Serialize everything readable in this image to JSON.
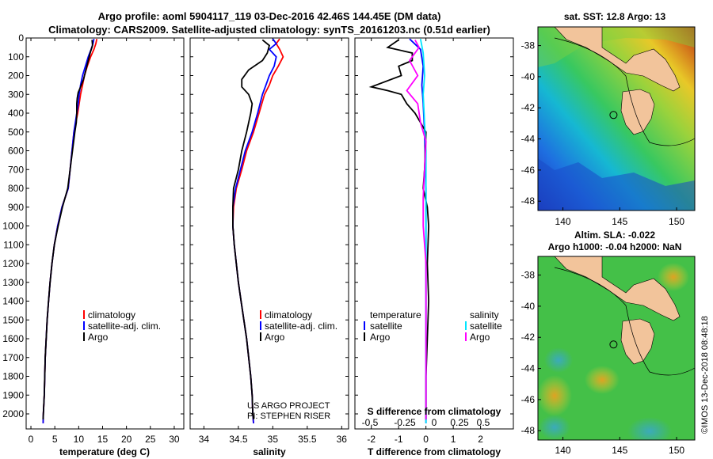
{
  "header": {
    "title_line1": "Argo profile: aoml 5904117_119 03-Dec-2016 42.46S 144.45E (DM data)",
    "title_line2": "Climatology: CARS2009. Satellite-adjusted climatology: synTS_20161203.nc (0.51d earlier)"
  },
  "colors": {
    "argo": "#000000",
    "climatology": "#ff0000",
    "satellite": "#0000ff",
    "salinity_diff": "#00e5ff",
    "salinity_sat_diff": "#ff00ff",
    "land": "#f2c49b"
  },
  "credits": {
    "line1": "US ARGO PROJECT",
    "line2": "PI: STEPHEN RISER",
    "watermark": "©IMOS 13-Dec-2018 08:48:18"
  },
  "chart_data": [
    {
      "type": "line",
      "id": "temperature",
      "xlabel": "temperature (deg C)",
      "xlim": [
        -1,
        32
      ],
      "xticks": [
        "0",
        "5",
        "10",
        "15",
        "20",
        "25",
        "30"
      ],
      "ylim": [
        0,
        2080
      ],
      "yticks": [
        "0",
        "100",
        "200",
        "300",
        "400",
        "500",
        "600",
        "700",
        "800",
        "900",
        "1000",
        "1100",
        "1200",
        "1300",
        "1400",
        "1500",
        "1600",
        "1700",
        "1800",
        "1900",
        "2000"
      ],
      "legend": [
        "climatology",
        "satellite-adj. clim.",
        "Argo"
      ],
      "series": [
        {
          "name": "climatology",
          "color": "#ff0000",
          "points": [
            [
              13.8,
              5
            ],
            [
              13.6,
              30
            ],
            [
              13.2,
              60
            ],
            [
              12.5,
              100
            ],
            [
              11.8,
              150
            ],
            [
              11.2,
              200
            ],
            [
              10.8,
              250
            ],
            [
              10.4,
              300
            ],
            [
              10.1,
              350
            ],
            [
              9.8,
              400
            ],
            [
              9.4,
              450
            ],
            [
              9.0,
              500
            ],
            [
              8.6,
              600
            ],
            [
              8.2,
              700
            ],
            [
              7.8,
              800
            ],
            [
              6.5,
              900
            ],
            [
              5.6,
              1000
            ],
            [
              4.9,
              1100
            ],
            [
              4.4,
              1200
            ],
            [
              4.0,
              1300
            ],
            [
              3.7,
              1400
            ],
            [
              3.4,
              1500
            ],
            [
              3.2,
              1600
            ],
            [
              3.0,
              1700
            ],
            [
              2.9,
              1800
            ],
            [
              2.8,
              1900
            ],
            [
              2.6,
              2000
            ],
            [
              2.55,
              2050
            ]
          ]
        },
        {
          "name": "satellite-adj. clim.",
          "color": "#0000ff",
          "points": [
            [
              13.2,
              5
            ],
            [
              13.0,
              30
            ],
            [
              12.6,
              60
            ],
            [
              12.0,
              100
            ],
            [
              11.4,
              150
            ],
            [
              10.8,
              200
            ],
            [
              10.4,
              250
            ],
            [
              10.1,
              300
            ],
            [
              9.9,
              350
            ],
            [
              9.6,
              400
            ],
            [
              9.3,
              450
            ],
            [
              9.0,
              500
            ],
            [
              8.6,
              600
            ],
            [
              8.2,
              700
            ],
            [
              7.8,
              800
            ],
            [
              6.5,
              900
            ],
            [
              5.6,
              1000
            ],
            [
              4.9,
              1100
            ],
            [
              4.4,
              1200
            ],
            [
              4.0,
              1300
            ],
            [
              3.7,
              1400
            ],
            [
              3.4,
              1500
            ],
            [
              3.2,
              1600
            ],
            [
              3.0,
              1700
            ],
            [
              2.9,
              1800
            ],
            [
              2.8,
              1900
            ],
            [
              2.6,
              2000
            ],
            [
              2.55,
              2050
            ]
          ]
        },
        {
          "name": "Argo",
          "color": "#000000",
          "points": [
            [
              12.8,
              10
            ],
            [
              12.9,
              40
            ],
            [
              12.4,
              80
            ],
            [
              12.0,
              120
            ],
            [
              11.5,
              170
            ],
            [
              11.0,
              220
            ],
            [
              10.4,
              260
            ],
            [
              9.9,
              290
            ],
            [
              9.7,
              320
            ],
            [
              9.6,
              350
            ],
            [
              9.6,
              400
            ],
            [
              9.5,
              450
            ],
            [
              9.2,
              500
            ],
            [
              8.7,
              600
            ],
            [
              8.2,
              700
            ],
            [
              7.7,
              800
            ],
            [
              6.6,
              900
            ],
            [
              5.7,
              1000
            ],
            [
              4.9,
              1100
            ],
            [
              4.4,
              1200
            ],
            [
              4.0,
              1300
            ],
            [
              3.7,
              1400
            ],
            [
              3.4,
              1500
            ],
            [
              3.2,
              1600
            ],
            [
              3.0,
              1700
            ],
            [
              2.9,
              1800
            ],
            [
              2.8,
              1900
            ],
            [
              2.6,
              2000
            ],
            [
              2.55,
              2030
            ]
          ]
        }
      ]
    },
    {
      "type": "line",
      "id": "salinity",
      "xlabel": "salinity",
      "xlim": [
        33.8,
        36.1
      ],
      "xticks": [
        "34",
        "34.5",
        "35",
        "35.5",
        "36"
      ],
      "legend": [
        "climatology",
        "satellite-adj. clim.",
        "Argo"
      ],
      "series": [
        {
          "name": "climatology",
          "color": "#ff0000",
          "points": [
            [
              35.1,
              5
            ],
            [
              35.05,
              30
            ],
            [
              35.1,
              60
            ],
            [
              35.15,
              100
            ],
            [
              35.08,
              150
            ],
            [
              35.0,
              200
            ],
            [
              34.95,
              250
            ],
            [
              34.88,
              300
            ],
            [
              34.8,
              400
            ],
            [
              34.72,
              500
            ],
            [
              34.62,
              600
            ],
            [
              34.55,
              700
            ],
            [
              34.47,
              800
            ],
            [
              34.43,
              900
            ],
            [
              34.42,
              1000
            ],
            [
              34.44,
              1100
            ],
            [
              34.47,
              1200
            ],
            [
              34.5,
              1300
            ],
            [
              34.54,
              1400
            ],
            [
              34.58,
              1500
            ],
            [
              34.62,
              1600
            ],
            [
              34.65,
              1700
            ],
            [
              34.68,
              1800
            ],
            [
              34.7,
              1900
            ],
            [
              34.71,
              2000
            ],
            [
              34.72,
              2050
            ]
          ]
        },
        {
          "name": "satellite-adj. clim.",
          "color": "#0000ff",
          "points": [
            [
              35.0,
              5
            ],
            [
              35.05,
              30
            ],
            [
              34.95,
              60
            ],
            [
              35.05,
              100
            ],
            [
              35.02,
              150
            ],
            [
              34.95,
              200
            ],
            [
              34.9,
              250
            ],
            [
              34.85,
              300
            ],
            [
              34.78,
              400
            ],
            [
              34.7,
              500
            ],
            [
              34.6,
              600
            ],
            [
              34.53,
              700
            ],
            [
              34.46,
              800
            ],
            [
              34.42,
              900
            ],
            [
              34.42,
              1000
            ],
            [
              34.44,
              1100
            ],
            [
              34.47,
              1200
            ],
            [
              34.5,
              1300
            ],
            [
              34.54,
              1400
            ],
            [
              34.58,
              1500
            ],
            [
              34.62,
              1600
            ],
            [
              34.65,
              1700
            ],
            [
              34.68,
              1800
            ],
            [
              34.7,
              1900
            ],
            [
              34.71,
              2000
            ],
            [
              34.72,
              2050
            ]
          ]
        },
        {
          "name": "Argo",
          "color": "#000000",
          "points": [
            [
              34.85,
              10
            ],
            [
              34.95,
              40
            ],
            [
              34.92,
              80
            ],
            [
              34.85,
              120
            ],
            [
              34.65,
              170
            ],
            [
              34.55,
              220
            ],
            [
              34.55,
              260
            ],
            [
              34.65,
              300
            ],
            [
              34.7,
              350
            ],
            [
              34.68,
              400
            ],
            [
              34.62,
              500
            ],
            [
              34.55,
              600
            ],
            [
              34.5,
              700
            ],
            [
              34.43,
              800
            ],
            [
              34.42,
              900
            ],
            [
              34.42,
              1000
            ],
            [
              34.44,
              1100
            ],
            [
              34.47,
              1200
            ],
            [
              34.5,
              1300
            ],
            [
              34.54,
              1400
            ],
            [
              34.58,
              1500
            ],
            [
              34.62,
              1600
            ],
            [
              34.65,
              1700
            ],
            [
              34.68,
              1800
            ],
            [
              34.7,
              1900
            ],
            [
              34.71,
              2000
            ],
            [
              34.72,
              2030
            ]
          ]
        }
      ]
    },
    {
      "type": "line",
      "id": "difference",
      "xlabel": "T difference from climatology",
      "xlabel_top": "S difference from climatology",
      "xlim": [
        -2.6,
        3.2
      ],
      "xticks": [
        "-2",
        "-1",
        "0",
        "1",
        "2"
      ],
      "xticks_top": [
        "-0.5",
        "-0.25",
        "0",
        "0.25",
        "0.5"
      ],
      "legend_left_title": "temperature",
      "legend_right_title": "salinity",
      "legend_left": [
        "satellite",
        "Argo"
      ],
      "legend_right": [
        "satellite",
        "Argo"
      ],
      "series": [
        {
          "name": "temperature satellite",
          "color": "#0000ff",
          "points": [
            [
              -0.6,
              5
            ],
            [
              -0.2,
              60
            ],
            [
              -0.1,
              150
            ],
            [
              -0.15,
              250
            ],
            [
              -0.1,
              350
            ],
            [
              -0.05,
              500
            ],
            [
              0,
              800
            ],
            [
              0,
              1200
            ],
            [
              0,
              1600
            ],
            [
              0,
              2050
            ]
          ]
        },
        {
          "name": "temperature Argo",
          "color": "#000000",
          "points": [
            [
              -1.0,
              10
            ],
            [
              -1.4,
              50
            ],
            [
              -0.5,
              80
            ],
            [
              -0.5,
              120
            ],
            [
              -1.0,
              150
            ],
            [
              -0.9,
              200
            ],
            [
              -2.0,
              260
            ],
            [
              -1.4,
              280
            ],
            [
              -0.9,
              300
            ],
            [
              -0.7,
              350
            ],
            [
              -0.4,
              400
            ],
            [
              -0.2,
              450
            ],
            [
              0,
              500
            ],
            [
              -0.05,
              700
            ],
            [
              -0.1,
              800
            ],
            [
              0.05,
              900
            ],
            [
              0.1,
              1000
            ],
            [
              0.05,
              1200
            ],
            [
              0.1,
              1400
            ],
            [
              0.05,
              1600
            ],
            [
              0,
              1800
            ],
            [
              0,
              2030
            ]
          ]
        },
        {
          "name": "salinity satellite",
          "color": "#00e5ff",
          "points": [
            [
              -0.2,
              5
            ],
            [
              -0.1,
              80
            ],
            [
              -0.05,
              200
            ],
            [
              -0.1,
              300
            ],
            [
              -0.05,
              450
            ],
            [
              0,
              600
            ],
            [
              0,
              900
            ],
            [
              0,
              1200
            ],
            [
              0,
              1600
            ],
            [
              0,
              2050
            ]
          ]
        },
        {
          "name": "salinity Argo",
          "color": "#ff00ff",
          "points": [
            [
              -0.4,
              10
            ],
            [
              -0.25,
              50
            ],
            [
              -0.6,
              120
            ],
            [
              -0.3,
              200
            ],
            [
              -0.7,
              280
            ],
            [
              -0.3,
              350
            ],
            [
              -0.2,
              450
            ],
            [
              0,
              550
            ],
            [
              -0.05,
              700
            ],
            [
              -0.1,
              850
            ],
            [
              -0.1,
              1000
            ],
            [
              0,
              1200
            ],
            [
              0,
              1600
            ],
            [
              0,
              2030
            ]
          ]
        }
      ]
    },
    {
      "type": "heatmap",
      "id": "sst_map",
      "title": "sat. SST: 12.8 Argo: 13",
      "xlim": [
        137.8,
        151.6
      ],
      "ylim": [
        -48.6,
        -36.8
      ],
      "xticks": [
        "140",
        "145",
        "150"
      ],
      "yticks": [
        "-38",
        "-40",
        "-42",
        "-44",
        "-46",
        "-48"
      ],
      "marker": {
        "lon": 144.45,
        "lat": -42.46
      }
    },
    {
      "type": "heatmap",
      "id": "sla_map",
      "title_line1": "Altim. SLA: -0.022",
      "title_line2": "Argo h1000: -0.04 h2000: NaN",
      "xlim": [
        137.8,
        151.6
      ],
      "ylim": [
        -48.6,
        -36.8
      ],
      "xticks": [
        "140",
        "145",
        "150"
      ],
      "yticks": [
        "-38",
        "-40",
        "-42",
        "-44",
        "-46",
        "-48"
      ],
      "marker": {
        "lon": 144.45,
        "lat": -42.46
      }
    }
  ]
}
